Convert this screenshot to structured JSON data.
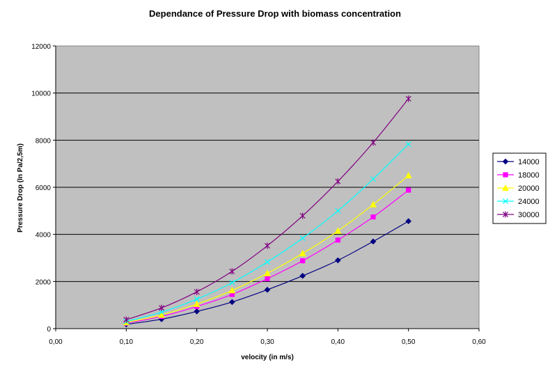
{
  "chart_data": {
    "type": "line",
    "title": "Dependance of Pressure Drop with biomass concentration",
    "xlabel": "velocity (in m/s)",
    "ylabel": "Pressure Drop (In Pa/2,5m)",
    "xlim": [
      0,
      0.6
    ],
    "ylim": [
      0,
      12000
    ],
    "x_ticks": [
      "0,00",
      "0,10",
      "0,20",
      "0,30",
      "0,40",
      "0,50",
      "0,60"
    ],
    "y_ticks": [
      "0",
      "2000",
      "4000",
      "6000",
      "8000",
      "10000",
      "12000"
    ],
    "grid": "horizontal",
    "legend_position": "right",
    "x": [
      0.1,
      0.15,
      0.2,
      0.25,
      0.3,
      0.35,
      0.4,
      0.45,
      0.5
    ],
    "series": [
      {
        "name": "14000",
        "color": "#000080",
        "marker": "diamond",
        "values": [
          180,
          400,
          730,
          1130,
          1650,
          2240,
          2900,
          3700,
          4560
        ]
      },
      {
        "name": "18000",
        "color": "#ff00ff",
        "marker": "square",
        "values": [
          230,
          520,
          940,
          1450,
          2120,
          2880,
          3760,
          4740,
          5880
        ]
      },
      {
        "name": "20000",
        "color": "#ffff00",
        "marker": "triangle",
        "values": [
          260,
          580,
          1040,
          1620,
          2350,
          3190,
          4150,
          5270,
          6500
        ]
      },
      {
        "name": "24000",
        "color": "#00ffff",
        "marker": "x",
        "values": [
          300,
          700,
          1250,
          1950,
          2830,
          3840,
          5000,
          6350,
          7830
        ]
      },
      {
        "name": "30000",
        "color": "#800080",
        "marker": "star",
        "values": [
          380,
          880,
          1560,
          2430,
          3520,
          4790,
          6250,
          7900,
          9760
        ]
      }
    ]
  }
}
